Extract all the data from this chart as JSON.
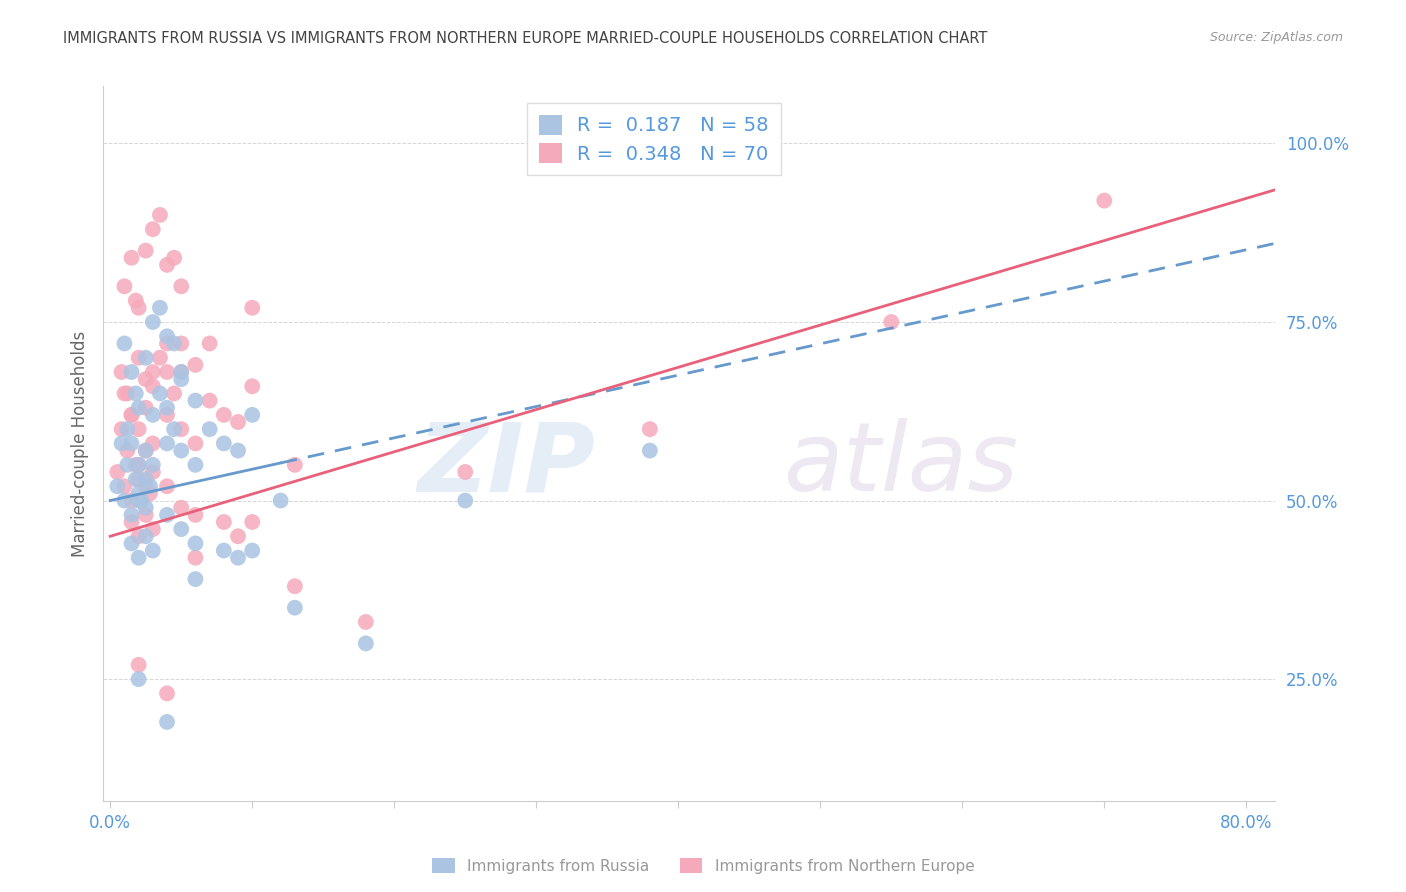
{
  "title": "IMMIGRANTS FROM RUSSIA VS IMMIGRANTS FROM NORTHERN EUROPE MARRIED-COUPLE HOUSEHOLDS CORRELATION CHART",
  "source": "Source: ZipAtlas.com",
  "ylabel": "Married-couple Households",
  "x_ticks": [
    0.0,
    0.1,
    0.2,
    0.3,
    0.4,
    0.5,
    0.6,
    0.7,
    0.8
  ],
  "x_tick_labels": [
    "0.0%",
    "",
    "",
    "",
    "",
    "",
    "",
    "",
    "80.0%"
  ],
  "y_tick_labels": [
    "25.0%",
    "50.0%",
    "75.0%",
    "100.0%"
  ],
  "y_ticks": [
    0.25,
    0.5,
    0.75,
    1.0
  ],
  "xlim": [
    -0.005,
    0.82
  ],
  "ylim": [
    0.08,
    1.08
  ],
  "russia_R": 0.187,
  "north_R": 0.348,
  "russia_N": 58,
  "north_N": 70,
  "color_russia": "#aac4e2",
  "color_north": "#f5aabb",
  "color_russia_line": "#6699cc",
  "color_north_line": "#e8607a",
  "color_axis_labels": "#5599dd",
  "color_title": "#444444",
  "color_source": "#999999",
  "color_grid": "#cccccc",
  "russia_scatter_x": [
    0.005,
    0.008,
    0.01,
    0.012,
    0.015,
    0.018,
    0.02,
    0.022,
    0.025,
    0.028,
    0.01,
    0.015,
    0.018,
    0.02,
    0.025,
    0.03,
    0.035,
    0.04,
    0.045,
    0.05,
    0.012,
    0.015,
    0.02,
    0.025,
    0.03,
    0.035,
    0.04,
    0.045,
    0.05,
    0.06,
    0.02,
    0.025,
    0.03,
    0.04,
    0.05,
    0.06,
    0.07,
    0.08,
    0.09,
    0.1,
    0.015,
    0.02,
    0.025,
    0.03,
    0.04,
    0.05,
    0.06,
    0.08,
    0.1,
    0.12,
    0.02,
    0.04,
    0.06,
    0.09,
    0.13,
    0.18,
    0.25,
    0.38
  ],
  "russia_scatter_y": [
    0.52,
    0.58,
    0.5,
    0.55,
    0.48,
    0.53,
    0.51,
    0.5,
    0.49,
    0.52,
    0.72,
    0.68,
    0.65,
    0.63,
    0.7,
    0.75,
    0.77,
    0.73,
    0.72,
    0.68,
    0.6,
    0.58,
    0.55,
    0.57,
    0.62,
    0.65,
    0.63,
    0.6,
    0.67,
    0.64,
    0.5,
    0.53,
    0.55,
    0.58,
    0.57,
    0.55,
    0.6,
    0.58,
    0.57,
    0.62,
    0.44,
    0.42,
    0.45,
    0.43,
    0.48,
    0.46,
    0.44,
    0.43,
    0.43,
    0.5,
    0.25,
    0.19,
    0.39,
    0.42,
    0.35,
    0.3,
    0.5,
    0.57
  ],
  "north_scatter_x": [
    0.005,
    0.008,
    0.01,
    0.012,
    0.015,
    0.018,
    0.02,
    0.025,
    0.028,
    0.03,
    0.01,
    0.015,
    0.018,
    0.02,
    0.025,
    0.03,
    0.035,
    0.04,
    0.045,
    0.05,
    0.012,
    0.015,
    0.02,
    0.025,
    0.03,
    0.035,
    0.04,
    0.045,
    0.05,
    0.06,
    0.02,
    0.025,
    0.03,
    0.04,
    0.05,
    0.06,
    0.07,
    0.08,
    0.09,
    0.1,
    0.015,
    0.02,
    0.025,
    0.03,
    0.04,
    0.05,
    0.06,
    0.08,
    0.1,
    0.13,
    0.02,
    0.04,
    0.06,
    0.09,
    0.13,
    0.18,
    0.25,
    0.38,
    0.55,
    0.7,
    0.008,
    0.01,
    0.015,
    0.02,
    0.025,
    0.03,
    0.04,
    0.05,
    0.07,
    0.1
  ],
  "north_scatter_y": [
    0.54,
    0.6,
    0.52,
    0.57,
    0.5,
    0.55,
    0.53,
    0.52,
    0.51,
    0.54,
    0.8,
    0.84,
    0.78,
    0.77,
    0.85,
    0.88,
    0.9,
    0.83,
    0.84,
    0.8,
    0.65,
    0.62,
    0.6,
    0.63,
    0.68,
    0.7,
    0.68,
    0.65,
    0.72,
    0.69,
    0.55,
    0.57,
    0.58,
    0.62,
    0.6,
    0.58,
    0.64,
    0.62,
    0.61,
    0.66,
    0.47,
    0.45,
    0.48,
    0.46,
    0.52,
    0.49,
    0.48,
    0.47,
    0.47,
    0.55,
    0.27,
    0.23,
    0.42,
    0.45,
    0.38,
    0.33,
    0.54,
    0.6,
    0.75,
    0.92,
    0.68,
    0.65,
    0.62,
    0.7,
    0.67,
    0.66,
    0.72,
    0.68,
    0.72,
    0.77
  ],
  "russia_line_x0": 0.0,
  "russia_line_x1": 0.82,
  "russia_line_y0": 0.5,
  "russia_line_y1": 0.86,
  "north_line_x0": 0.0,
  "north_line_x1": 0.82,
  "north_line_y0": 0.45,
  "north_line_y1": 0.935
}
